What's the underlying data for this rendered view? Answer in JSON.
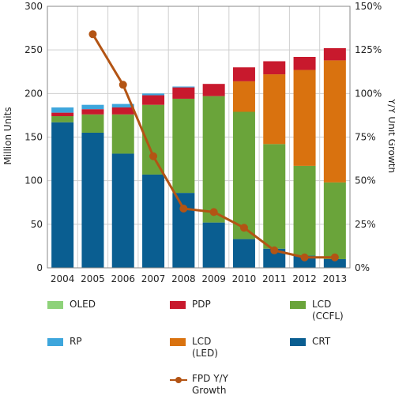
{
  "chart_data": {
    "type": "bar",
    "stacked": true,
    "categories": [
      "2004",
      "2005",
      "2006",
      "2007",
      "2008",
      "2009",
      "2010",
      "2011",
      "2012",
      "2013"
    ],
    "ylabel": "Million Units",
    "y2label": "Y/Y Unit Growth",
    "ylim": [
      0,
      300
    ],
    "yticks": [
      "0",
      "50",
      "100",
      "150",
      "200",
      "250",
      "300"
    ],
    "y2lim": [
      0,
      150
    ],
    "y2ticks": [
      "0%",
      "25%",
      "50%",
      "75%",
      "100%",
      "125%",
      "150%"
    ],
    "grid": true,
    "legend_position": "bottom",
    "series": [
      {
        "name": "CRT",
        "color": "#0a5e91",
        "values": [
          167,
          155,
          131,
          107,
          86,
          52,
          33,
          22,
          14,
          10
        ]
      },
      {
        "name": "LCD (CCFL)",
        "color": "#6aa43a",
        "values": [
          7,
          21,
          45,
          80,
          108,
          145,
          146,
          120,
          103,
          88
        ]
      },
      {
        "name": "LCD (LED)",
        "color": "#d9720f",
        "values": [
          0,
          0,
          0,
          0,
          0,
          0,
          35,
          80,
          110,
          140
        ]
      },
      {
        "name": "PDP",
        "color": "#c8192d",
        "values": [
          4,
          6,
          8,
          11,
          13,
          14,
          16,
          15,
          15,
          14
        ]
      },
      {
        "name": "RP",
        "color": "#3ea6dc",
        "values": [
          6,
          5,
          4,
          2,
          1,
          0,
          0,
          0,
          0,
          0
        ]
      },
      {
        "name": "OLED",
        "color": "#8ed27a",
        "values": [
          0,
          0,
          0,
          0,
          0,
          0,
          0,
          0,
          0,
          0
        ]
      }
    ],
    "line_series": {
      "name": "FPD Y/Y Growth",
      "color": "#b35414",
      "axis": "right",
      "x": [
        "2005",
        "2006",
        "2007",
        "2008",
        "2009",
        "2010",
        "2011",
        "2012",
        "2013"
      ],
      "values": [
        134,
        105,
        64,
        34,
        32,
        23,
        10,
        6,
        6
      ]
    }
  },
  "legend": [
    {
      "label": "OLED",
      "color": "#8ed27a",
      "kind": "box"
    },
    {
      "label": "PDP",
      "color": "#c8192d",
      "kind": "box"
    },
    {
      "label": "LCD (CCFL)",
      "color": "#6aa43a",
      "kind": "box"
    },
    {
      "label": "RP",
      "color": "#3ea6dc",
      "kind": "box"
    },
    {
      "label": "LCD (LED)",
      "color": "#d9720f",
      "kind": "box"
    },
    {
      "label": "CRT",
      "color": "#0a5e91",
      "kind": "box"
    },
    {
      "label": "FPD Y/Y Growth",
      "color": "#b35414",
      "kind": "line"
    }
  ]
}
